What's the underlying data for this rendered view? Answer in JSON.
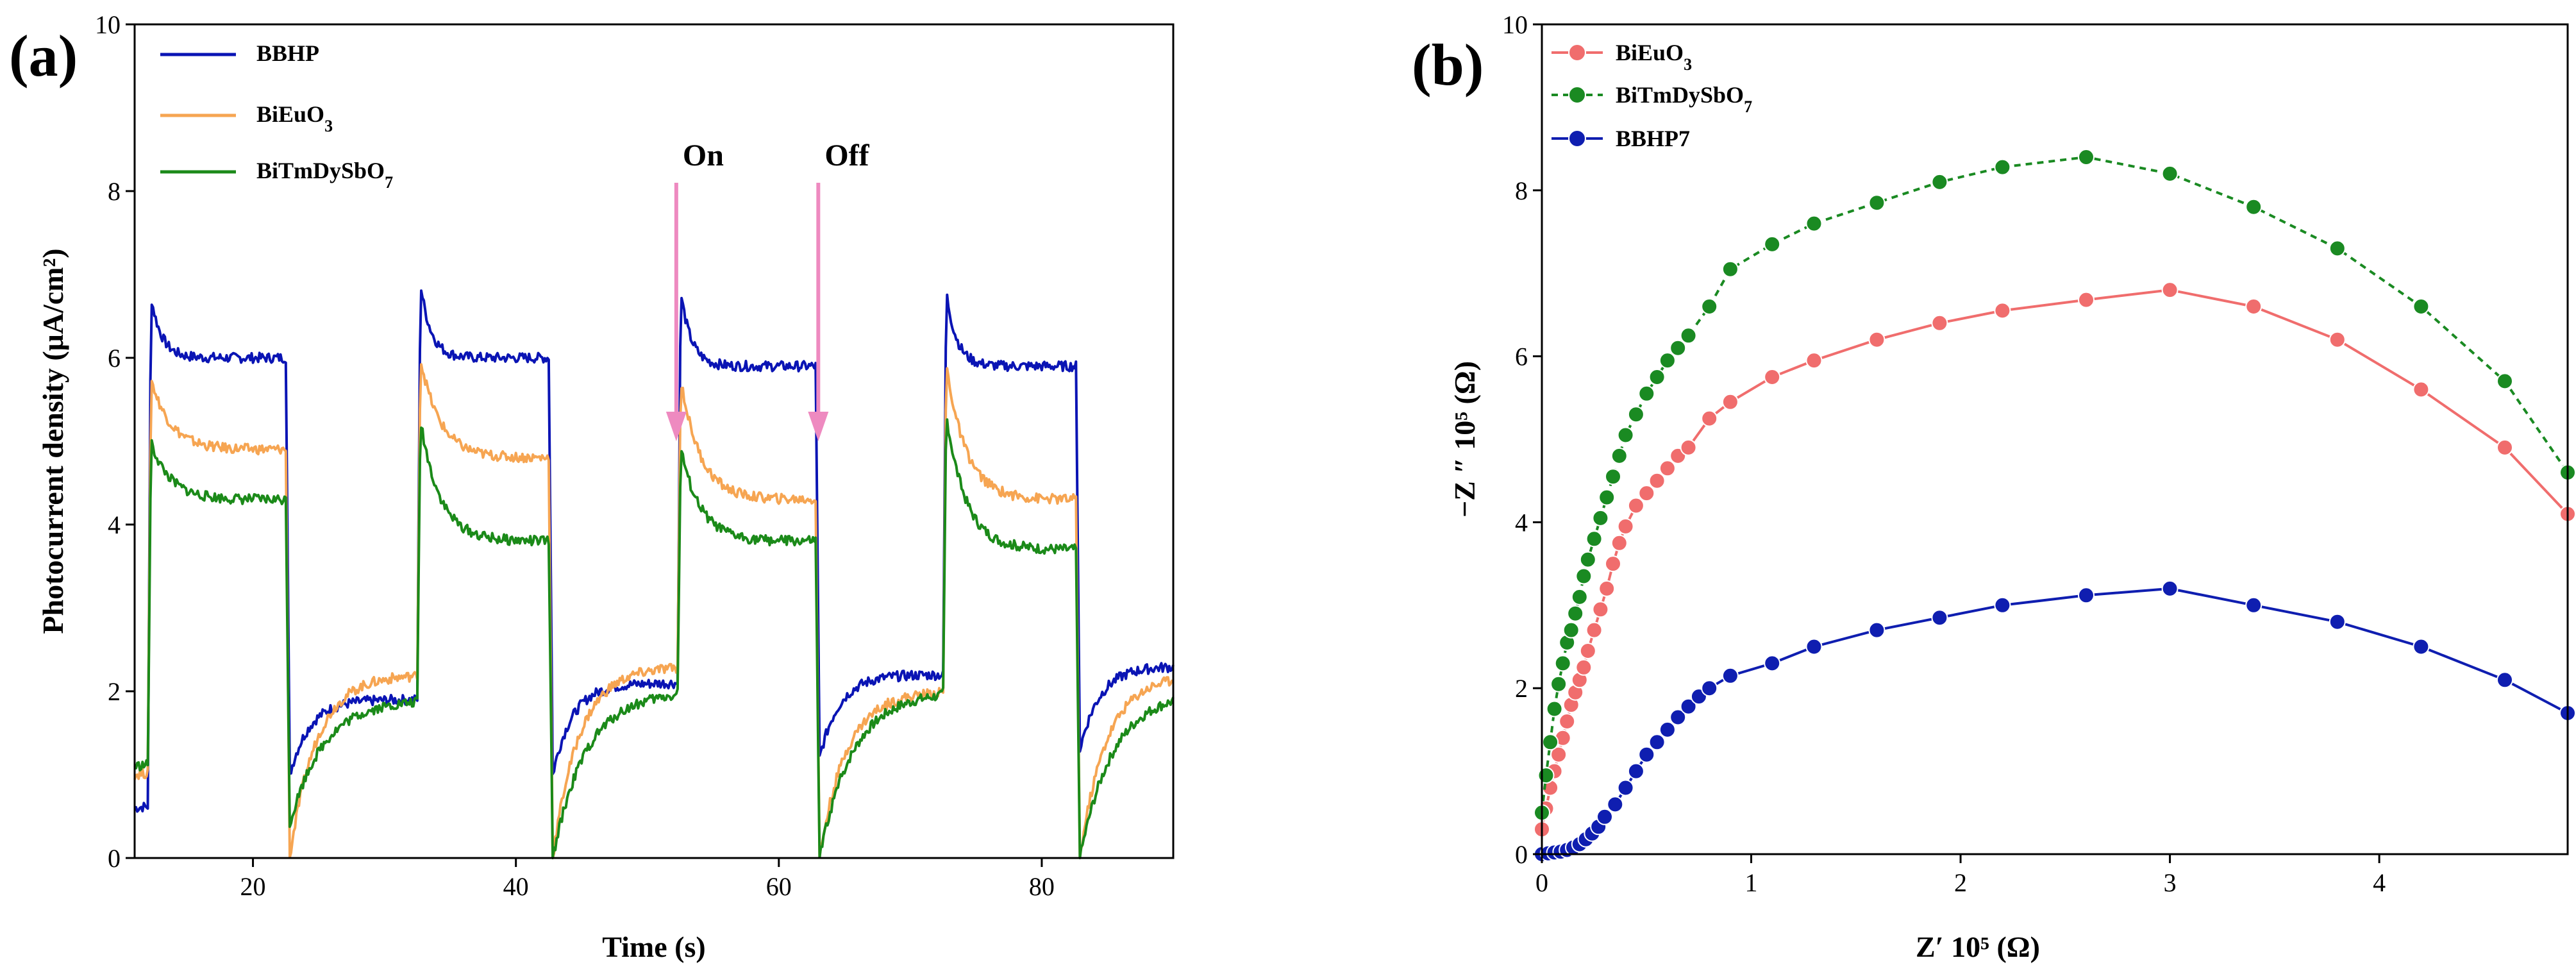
{
  "colors": {
    "bbhp": "#0a14b4",
    "bieuo3": "#f6a552",
    "bitmdysbo7": "#1b8a19",
    "eis_bieuo3": "#f06d6d",
    "eis_bitmdysbo7": "#1a8a22",
    "eis_bbhp7": "#0f1eb0",
    "arrow": "#ee8ac0"
  },
  "chart_data": [
    {
      "type": "line",
      "panel_label": "(a)",
      "xlabel": "Time (s)",
      "ylabel": "Photocurrent density (μA/cm²)",
      "xlim": [
        11,
        90
      ],
      "ylim": [
        0,
        10
      ],
      "xticks": [
        20,
        40,
        60,
        80
      ],
      "yticks": [
        0,
        2,
        4,
        6,
        8,
        10
      ],
      "legend_position": "top-left",
      "annotations": [
        {
          "text": "On",
          "x": 52.2,
          "arrow_from_y": 8.1,
          "arrow_to_y": 5.0
        },
        {
          "text": "Off",
          "x": 63.0,
          "arrow_from_y": 8.1,
          "arrow_to_y": 5.0
        }
      ],
      "cycles": [
        {
          "on": 12.0,
          "off": 22.5
        },
        {
          "on": 32.5,
          "off": 42.5
        },
        {
          "on": 52.3,
          "off": 62.8
        },
        {
          "on": 72.5,
          "off": 82.6
        }
      ],
      "series": [
        {
          "name": "BBHP",
          "legend": [
            "BBHP",
            ""
          ],
          "colorKey": "bbhp",
          "start": 0.6,
          "peaks": [
            7.0,
            7.2,
            7.1,
            7.1
          ],
          "plateaus": [
            6.0,
            6.0,
            5.9,
            5.9
          ],
          "dips": [
            1.0,
            1.0,
            1.2,
            1.3
          ],
          "darks": [
            1.9,
            2.1,
            2.2,
            2.3
          ],
          "tau_on": 0.8,
          "tau_off": 1.5
        },
        {
          "name": "BiEuO3",
          "legend": [
            "BiEuO",
            "3"
          ],
          "colorKey": "bieuo3",
          "start": 1.0,
          "peaks": [
            5.9,
            6.2,
            6.0,
            6.2
          ],
          "plateaus": [
            4.9,
            4.8,
            4.3,
            4.3
          ],
          "dips": [
            0.0,
            0.0,
            0.0,
            0.0
          ],
          "darks": [
            2.2,
            2.3,
            2.0,
            2.2
          ],
          "tau_on": 1.5,
          "tau_off": 2.0
        },
        {
          "name": "BiTmDySbO7",
          "legend": [
            "BiTmDySbO",
            "7"
          ],
          "colorKey": "bitmdysbo7",
          "start": 1.1,
          "peaks": [
            5.1,
            5.5,
            5.1,
            5.6
          ],
          "plateaus": [
            4.3,
            3.8,
            3.8,
            3.7
          ],
          "dips": [
            0.4,
            0.0,
            0.0,
            0.0
          ],
          "darks": [
            1.9,
            2.0,
            2.0,
            2.0
          ],
          "tau_on": 1.5,
          "tau_off": 2.5
        }
      ]
    },
    {
      "type": "scatter",
      "panel_label": "(b)",
      "xlabel": "Z′ 10⁵ (Ω)",
      "ylabel": "−Z ″ 10⁵ (Ω)",
      "xlim": [
        0,
        4.9
      ],
      "ylim": [
        0,
        10
      ],
      "xticks": [
        0,
        1,
        2,
        3,
        4
      ],
      "yticks": [
        0,
        2,
        4,
        6,
        8,
        10
      ],
      "legend_position": "top-left",
      "series": [
        {
          "name": "BiEuO3",
          "legend": [
            "BiEuO",
            "3"
          ],
          "colorKey": "eis_bieuo3",
          "dash": "",
          "x": [
            0.0,
            0.02,
            0.04,
            0.06,
            0.08,
            0.1,
            0.12,
            0.14,
            0.16,
            0.18,
            0.2,
            0.22,
            0.25,
            0.28,
            0.31,
            0.34,
            0.37,
            0.4,
            0.45,
            0.5,
            0.55,
            0.6,
            0.65,
            0.7,
            0.8,
            0.9,
            1.1,
            1.3,
            1.6,
            1.9,
            2.2,
            2.6,
            3.0,
            3.4,
            3.8,
            4.2,
            4.6,
            4.9
          ],
          "y": [
            0.3,
            0.55,
            0.8,
            1.0,
            1.2,
            1.4,
            1.6,
            1.8,
            1.95,
            2.1,
            2.25,
            2.45,
            2.7,
            2.95,
            3.2,
            3.5,
            3.75,
            3.95,
            4.2,
            4.35,
            4.5,
            4.65,
            4.8,
            4.9,
            5.25,
            5.45,
            5.75,
            5.95,
            6.2,
            6.4,
            6.55,
            6.68,
            6.8,
            6.6,
            6.2,
            5.6,
            4.9,
            4.1
          ]
        },
        {
          "name": "BiTmDySbO7",
          "legend": [
            "BiTmDySbO",
            "7"
          ],
          "colorKey": "eis_bitmdysbo7",
          "dash": "10,8",
          "x": [
            0.0,
            0.02,
            0.04,
            0.06,
            0.08,
            0.1,
            0.12,
            0.14,
            0.16,
            0.18,
            0.2,
            0.22,
            0.25,
            0.28,
            0.31,
            0.34,
            0.37,
            0.4,
            0.45,
            0.5,
            0.55,
            0.6,
            0.65,
            0.7,
            0.8,
            0.9,
            1.1,
            1.3,
            1.6,
            1.9,
            2.2,
            2.6,
            3.0,
            3.4,
            3.8,
            4.2,
            4.6,
            4.9
          ],
          "y": [
            0.5,
            0.95,
            1.35,
            1.75,
            2.05,
            2.3,
            2.55,
            2.7,
            2.9,
            3.1,
            3.35,
            3.55,
            3.8,
            4.05,
            4.3,
            4.55,
            4.8,
            5.05,
            5.3,
            5.55,
            5.75,
            5.95,
            6.1,
            6.25,
            6.6,
            7.05,
            7.35,
            7.6,
            7.85,
            8.1,
            8.28,
            8.4,
            8.2,
            7.8,
            7.3,
            6.6,
            5.7,
            4.6
          ]
        },
        {
          "name": "BBHP7",
          "legend": [
            "BBHP7",
            ""
          ],
          "colorKey": "eis_bbhp7",
          "dash": "",
          "x": [
            0.0,
            0.03,
            0.06,
            0.09,
            0.12,
            0.15,
            0.18,
            0.21,
            0.24,
            0.27,
            0.3,
            0.35,
            0.4,
            0.45,
            0.5,
            0.55,
            0.6,
            0.65,
            0.7,
            0.75,
            0.8,
            0.9,
            1.1,
            1.3,
            1.6,
            1.9,
            2.2,
            2.6,
            3.0,
            3.4,
            3.8,
            4.2,
            4.6,
            4.9
          ],
          "y": [
            0.0,
            0.01,
            0.02,
            0.03,
            0.05,
            0.08,
            0.12,
            0.18,
            0.25,
            0.33,
            0.45,
            0.6,
            0.8,
            1.0,
            1.2,
            1.35,
            1.5,
            1.65,
            1.78,
            1.9,
            2.0,
            2.15,
            2.3,
            2.5,
            2.7,
            2.85,
            3.0,
            3.12,
            3.2,
            3.0,
            2.8,
            2.5,
            2.1,
            1.7
          ]
        }
      ]
    }
  ]
}
